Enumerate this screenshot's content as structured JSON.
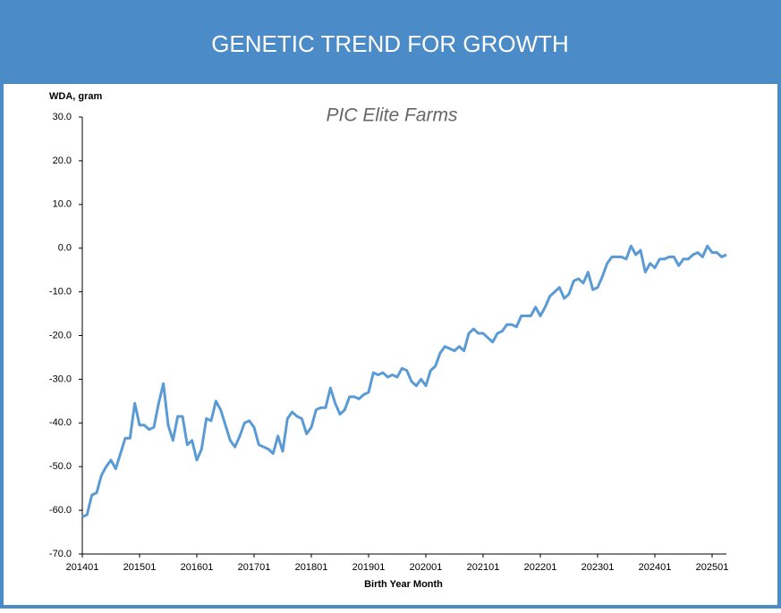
{
  "chart_data": {
    "type": "line",
    "title": "GENETIC TREND FOR GROWTH",
    "subtitle": "PIC Elite Farms",
    "ylabel": "WDA, gram",
    "xlabel": "Birth Year Month",
    "color": "#5b9bd5",
    "categories": [
      "201401",
      null,
      null,
      null,
      null,
      null,
      null,
      null,
      null,
      null,
      null,
      null,
      "201501",
      null,
      null,
      null,
      null,
      null,
      null,
      null,
      null,
      null,
      null,
      null,
      "201601",
      null,
      null,
      null,
      null,
      null,
      null,
      null,
      null,
      null,
      null,
      null,
      "201701",
      null,
      null,
      null,
      null,
      null,
      null,
      null,
      null,
      null,
      null,
      null,
      "201801",
      null,
      null,
      null,
      null,
      null,
      null,
      null,
      null,
      null,
      null,
      null,
      "201901",
      null,
      null,
      null,
      null,
      null,
      null,
      null,
      null,
      null,
      null,
      null,
      "202001",
      null,
      null,
      null,
      null,
      null,
      null,
      null,
      null,
      null,
      null,
      null,
      "202101",
      null,
      null,
      null,
      null,
      null,
      null,
      null,
      null,
      null,
      null,
      null,
      "202201",
      null,
      null,
      null,
      null,
      null,
      null,
      null,
      null,
      null,
      null,
      null,
      "202301",
      null,
      null,
      null,
      null,
      null,
      null,
      null,
      null,
      null,
      null,
      null,
      "202401",
      null,
      null,
      null,
      null,
      null,
      null,
      null,
      null,
      null,
      null,
      null,
      "202501",
      null,
      null,
      null
    ],
    "values": [
      -61.5,
      -61,
      -56.5,
      -56,
      -52,
      -50,
      -48.5,
      -50.5,
      -47,
      -43.5,
      -43.5,
      -35.5,
      -40.5,
      -40.5,
      -41.5,
      -41,
      -35.5,
      -31,
      -40.5,
      -44,
      -38.5,
      -38.5,
      -45,
      -44,
      -48.5,
      -46,
      -39,
      -39.5,
      -35,
      -37,
      -40.5,
      -44,
      -45.5,
      -43,
      -40,
      -39.5,
      -41,
      -45,
      -45.5,
      -46,
      -47,
      -43,
      -46.5,
      -39,
      -37.5,
      -38.5,
      -39,
      -42.5,
      -41,
      -37,
      -36.5,
      -36.5,
      -32,
      -35.5,
      -38,
      -37,
      -34,
      -34,
      -34.5,
      -33.5,
      -33,
      -28.5,
      -29,
      -28.5,
      -29.5,
      -29,
      -29.5,
      -27.5,
      -28,
      -30.5,
      -31.5,
      -30,
      -31.5,
      -28,
      -27,
      -24,
      -22.5,
      -23,
      -23.5,
      -22.5,
      -23.5,
      -19.5,
      -18.5,
      -19.5,
      -19.5,
      -20.5,
      -21.5,
      -19.5,
      -19,
      -17.5,
      -17.5,
      -18,
      -15.5,
      -15.5,
      -15.5,
      -13.5,
      -15.5,
      -13.5,
      -11,
      -10,
      -9,
      -11.5,
      -10.5,
      -7.5,
      -7,
      -8,
      -5.5,
      -9.5,
      -9,
      -6.5,
      -3.5,
      -2,
      -2,
      -2,
      -2.5,
      0.5,
      -1.5,
      -0.5,
      -5.5,
      -3.5,
      -4.5,
      -2.5,
      -2.5,
      -2,
      -2,
      -4,
      -2.5,
      -2.5,
      -1.5,
      -1,
      -2,
      0.5,
      -1,
      -1,
      -2,
      -1.5
    ],
    "ylim": [
      -70,
      30
    ],
    "yticks": [
      {
        "value": -70,
        "label": "-70.0"
      },
      {
        "value": -60,
        "label": "-60.0"
      },
      {
        "value": -50,
        "label": "-50.0"
      },
      {
        "value": -40,
        "label": "-40.0"
      },
      {
        "value": -30,
        "label": "-30.0"
      },
      {
        "value": -20,
        "label": "-20.0"
      },
      {
        "value": -10,
        "label": "-10.0"
      },
      {
        "value": 0,
        "label": "0.0"
      },
      {
        "value": 10,
        "label": "10.0"
      },
      {
        "value": 20,
        "label": "20.0"
      },
      {
        "value": 30,
        "label": "30.0"
      }
    ],
    "grid": false
  }
}
